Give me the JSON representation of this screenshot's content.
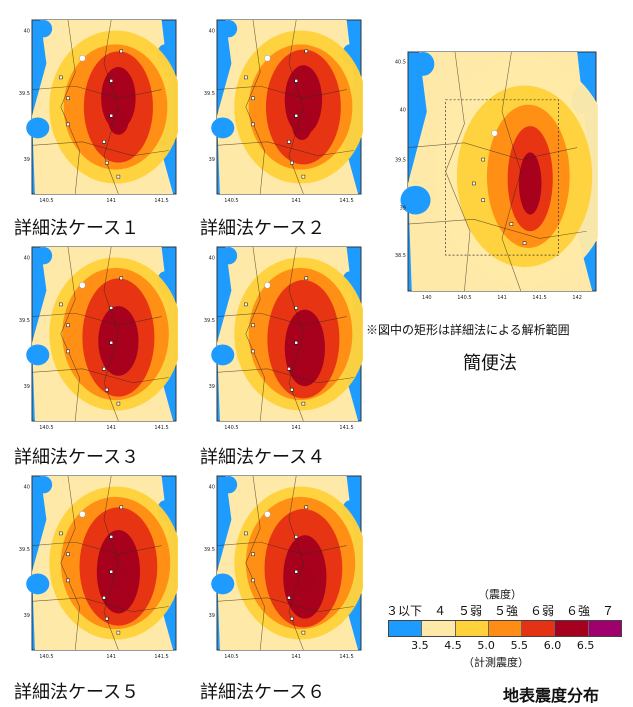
{
  "panels": [
    {
      "caption": "詳細法ケース１",
      "x_ticks": [
        "140.5",
        "141",
        "141.5"
      ],
      "y_ticks": [
        "40",
        "39.5",
        "39"
      ]
    },
    {
      "caption": "詳細法ケース２",
      "x_ticks": [
        "140.5",
        "141",
        "141.5"
      ],
      "y_ticks": [
        "40",
        "39.5",
        "39"
      ]
    },
    {
      "caption": "詳細法ケース３",
      "x_ticks": [
        "140.5",
        "141",
        "141.5"
      ],
      "y_ticks": [
        "40",
        "39.5",
        "39"
      ]
    },
    {
      "caption": "詳細法ケース４",
      "x_ticks": [
        "140.5",
        "141",
        "141.5"
      ],
      "y_ticks": [
        "40",
        "39.5",
        "39"
      ]
    },
    {
      "caption": "詳細法ケース５",
      "x_ticks": [
        "140.5",
        "141",
        "141.5"
      ],
      "y_ticks": [
        "40",
        "39.5",
        "39"
      ]
    },
    {
      "caption": "詳細法ケース６",
      "x_ticks": [
        "140.5",
        "141",
        "141.5"
      ],
      "y_ticks": [
        "40",
        "39.5",
        "39"
      ]
    }
  ],
  "overview": {
    "caption": "簡便法",
    "note": "※図中の矩形は詳細法による解析範囲",
    "x_ticks": [
      "140",
      "140.5",
      "141",
      "141.5",
      "142"
    ],
    "y_ticks": [
      "40.5",
      "40",
      "39.5",
      "39",
      "38.5"
    ]
  },
  "legend": {
    "title": "（震度）",
    "classes_text": "３以下　４　５弱　５強　６弱　６強　７",
    "ticks": [
      "3.5",
      "4.5",
      "5.0",
      "5.5",
      "6.0",
      "6.5"
    ],
    "footer": "（計測震度）",
    "colors": [
      "#1e9bff",
      "#ffe9a8",
      "#ffd23c",
      "#ff8c14",
      "#e63214",
      "#a5001e",
      "#a0006e"
    ]
  },
  "figure_title": "地表震度分布"
}
